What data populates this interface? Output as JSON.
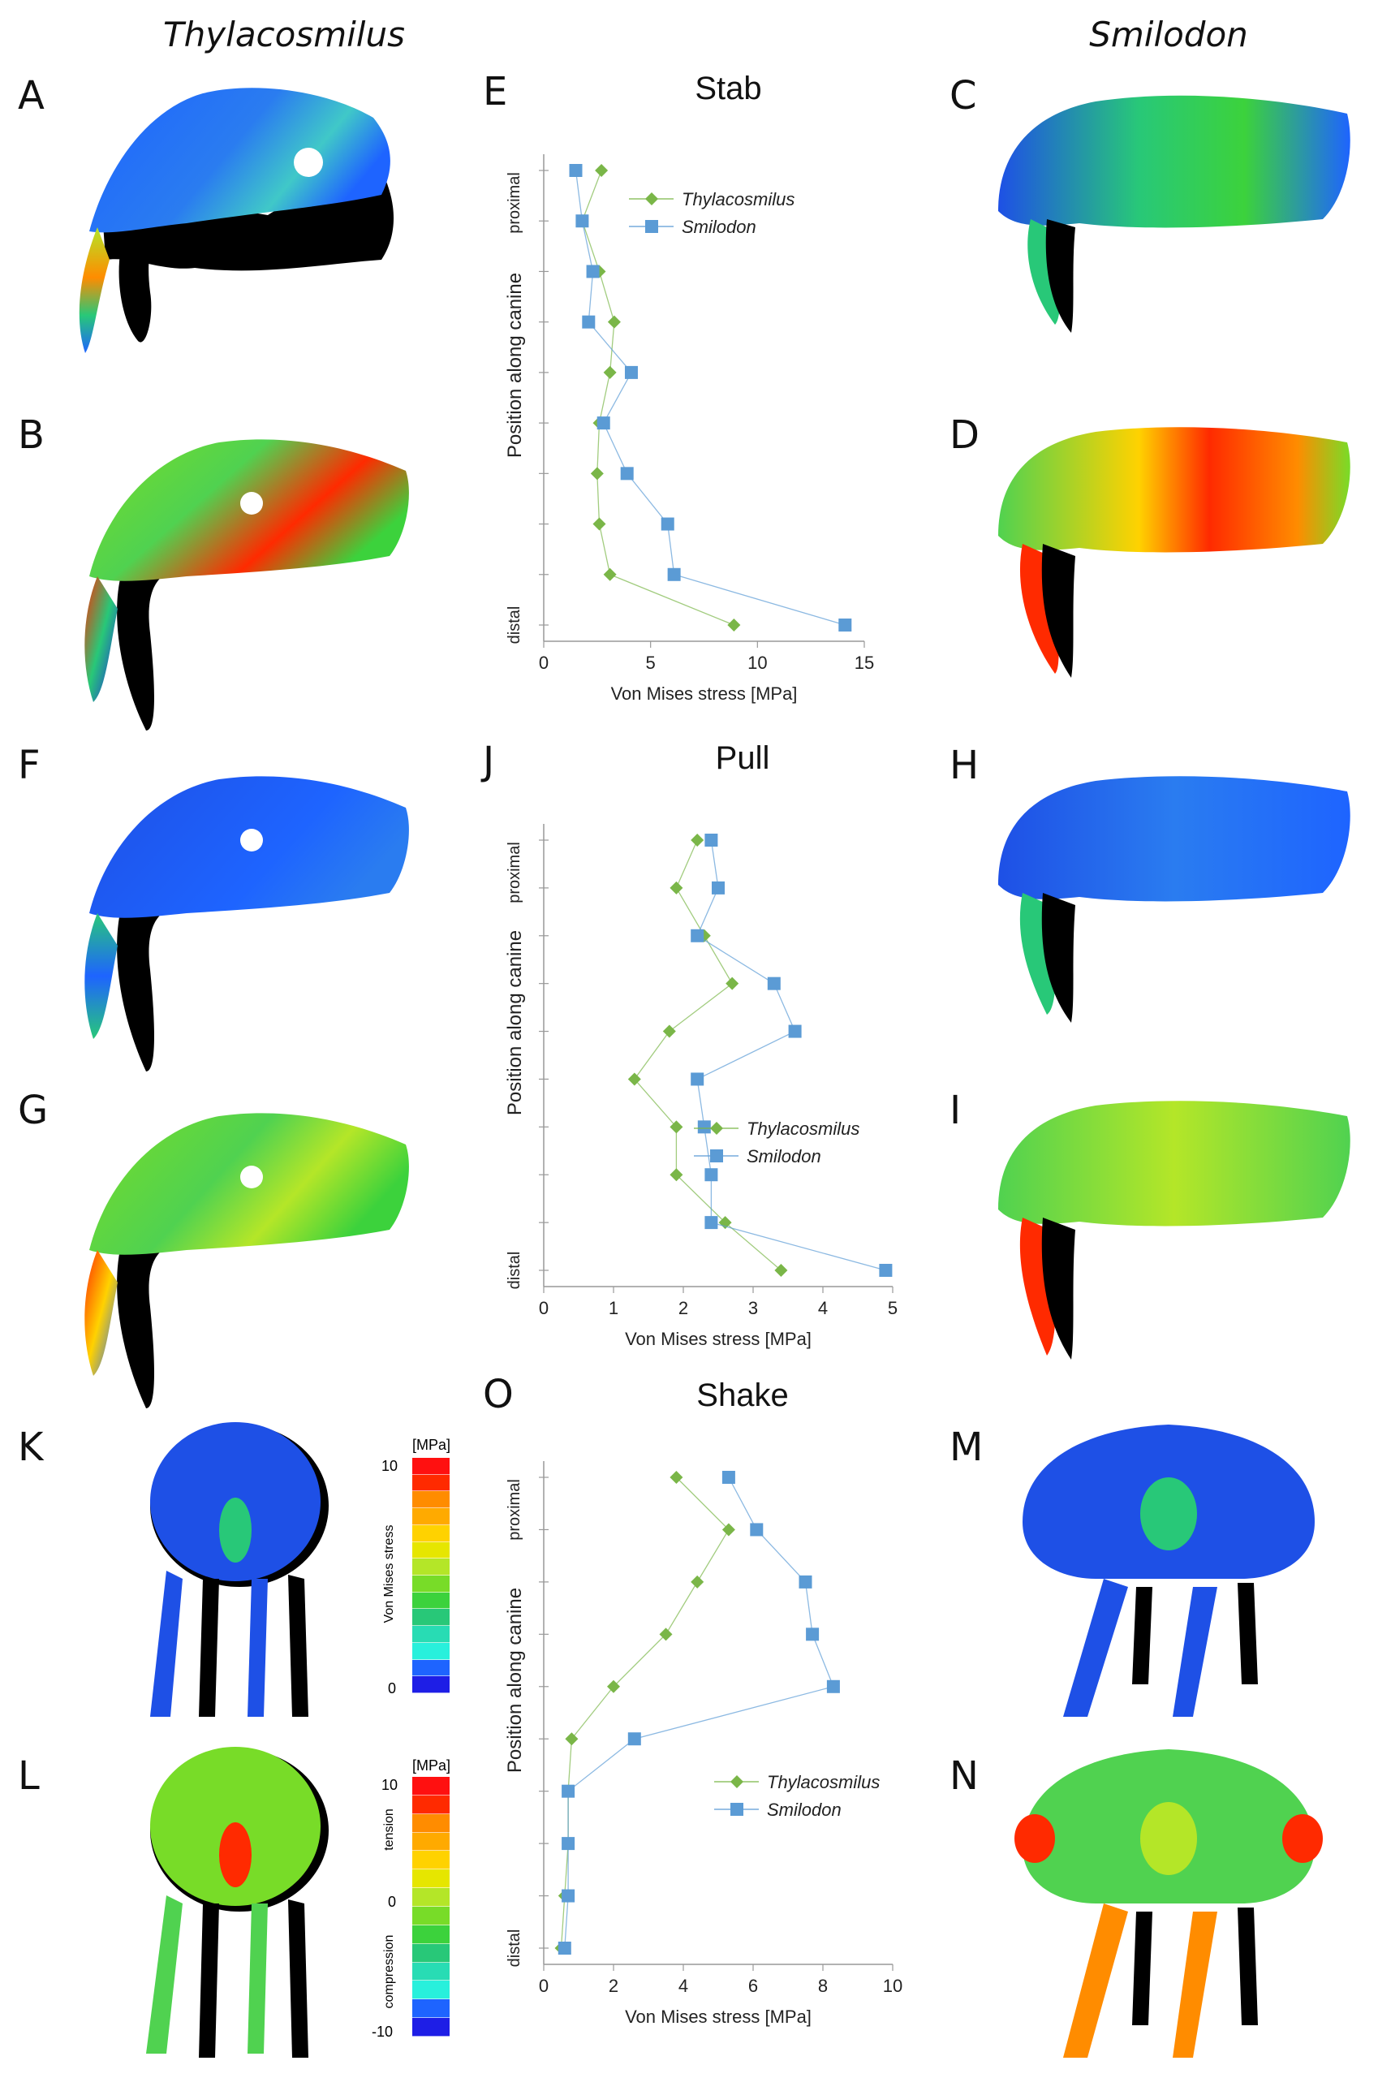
{
  "headers": {
    "left": "Thylacosmilus",
    "right": "Smilodon"
  },
  "panels": {
    "A": "A",
    "B": "B",
    "C": "C",
    "D": "D",
    "E": "E",
    "F": "F",
    "G": "G",
    "H": "H",
    "I": "I",
    "J": "J",
    "K": "K",
    "L": "L",
    "M": "M",
    "N": "N",
    "O": "O"
  },
  "scale_vm": {
    "unit": "[MPa]",
    "top": "10",
    "bottom": "0",
    "label": "Von Mises stress",
    "colors": [
      "#ff1010",
      "#ff2a00",
      "#ff8c00",
      "#ffaa00",
      "#ffd200",
      "#e6e600",
      "#b4e628",
      "#78dc28",
      "#3cd23c",
      "#28c878",
      "#28dcb4",
      "#28f0dc",
      "#1e64ff",
      "#1e1ee6"
    ]
  },
  "scale_ps": {
    "unit": "[MPa]",
    "top": "10",
    "mid": "0",
    "bottom": "-10",
    "tension": "tension",
    "compression": "compression",
    "colors": [
      "#ff1010",
      "#ff2a00",
      "#ff8c00",
      "#ffaa00",
      "#ffd200",
      "#e6e600",
      "#b4e628",
      "#78dc28",
      "#3cd23c",
      "#28c878",
      "#28dcb4",
      "#28f0dc",
      "#1e64ff",
      "#1e1ee6"
    ]
  },
  "skull_colors": {
    "blue": "#1e50e6",
    "green": "#50d250",
    "black": "#000000"
  },
  "chart_data": [
    {
      "type": "line",
      "title": "Stab",
      "xlabel": "Von Mises stress [MPa]",
      "ylabel": "Position along canine",
      "y_top_label": "proximal",
      "y_bottom_label": "distal",
      "xlim": [
        0,
        15
      ],
      "xticks": [
        "0",
        "5",
        "10",
        "15"
      ],
      "n_positions": 10,
      "series": [
        {
          "name": "Thylacosmilus",
          "color": "#7ab648",
          "marker": "diamond",
          "values": [
            2.7,
            1.8,
            2.6,
            3.3,
            3.1,
            2.6,
            2.5,
            2.6,
            3.1,
            8.9
          ]
        },
        {
          "name": "Smilodon",
          "color": "#5b9bd5",
          "marker": "square",
          "values": [
            1.5,
            1.8,
            2.3,
            2.1,
            4.1,
            2.8,
            3.9,
            5.8,
            6.1,
            14.1
          ]
        }
      ]
    },
    {
      "type": "line",
      "title": "Pull",
      "xlabel": "Von Mises stress [MPa]",
      "ylabel": "Position along canine",
      "y_top_label": "proximal",
      "y_bottom_label": "distal",
      "xlim": [
        0,
        5
      ],
      "xticks": [
        "0",
        "1",
        "2",
        "3",
        "4",
        "5"
      ],
      "n_positions": 10,
      "series": [
        {
          "name": "Thylacosmilus",
          "color": "#7ab648",
          "marker": "diamond",
          "values": [
            2.2,
            1.9,
            2.3,
            2.7,
            1.8,
            1.3,
            1.9,
            1.9,
            2.6,
            3.4
          ]
        },
        {
          "name": "Smilodon",
          "color": "#5b9bd5",
          "marker": "square",
          "values": [
            2.4,
            2.5,
            2.2,
            3.3,
            3.6,
            2.2,
            2.3,
            2.4,
            2.4,
            4.9
          ]
        }
      ]
    },
    {
      "type": "line",
      "title": "Shake",
      "xlabel": "Von Mises stress [MPa]",
      "ylabel": "Position along canine",
      "y_top_label": "proximal",
      "y_bottom_label": "distal",
      "xlim": [
        0,
        10
      ],
      "xticks": [
        "0",
        "2",
        "4",
        "6",
        "8",
        "10"
      ],
      "n_positions": 10,
      "series": [
        {
          "name": "Thylacosmilus",
          "color": "#7ab648",
          "marker": "diamond",
          "values": [
            3.8,
            5.3,
            4.4,
            3.5,
            2.0,
            0.8,
            0.7,
            0.7,
            0.6,
            0.5
          ]
        },
        {
          "name": "Smilodon",
          "color": "#5b9bd5",
          "marker": "square",
          "values": [
            5.3,
            6.1,
            7.5,
            7.7,
            8.3,
            2.6,
            0.7,
            0.7,
            0.7,
            0.6
          ]
        }
      ]
    }
  ]
}
